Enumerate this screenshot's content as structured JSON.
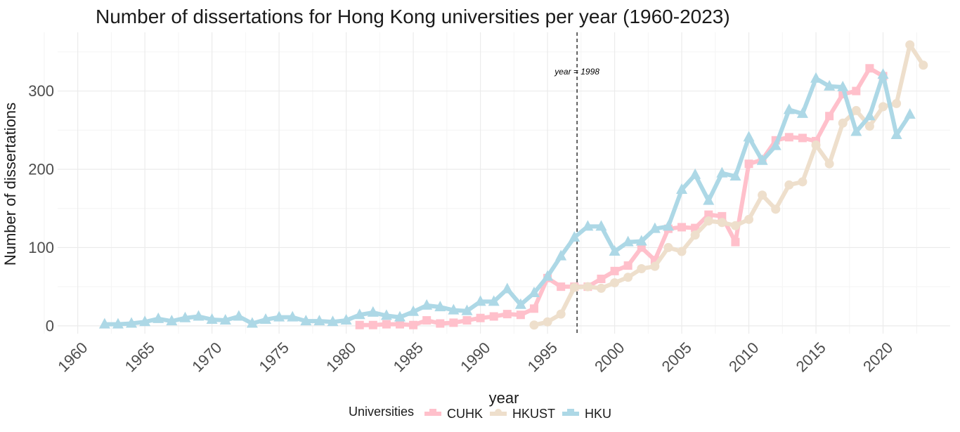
{
  "chart_data": {
    "type": "line",
    "title": "Number of dissertations for Hong Kong universities per year (1960-2023)",
    "xlabel": "year",
    "ylabel": "Number of dissertations",
    "xlim": [
      1958.5,
      2025
    ],
    "ylim": [
      -10,
      375
    ],
    "x_ticks": [
      1960,
      1965,
      1970,
      1975,
      1980,
      1985,
      1990,
      1995,
      2000,
      2005,
      2010,
      2015,
      2020
    ],
    "y_ticks": [
      0,
      100,
      200,
      300
    ],
    "grid": true,
    "legend": {
      "title": "Universities",
      "position": "bottom"
    },
    "annotation": {
      "x": 1998,
      "label": "year = 1998"
    },
    "series": [
      {
        "name": "CUHK",
        "color": "#FFC0CB",
        "marker": "square",
        "x": [
          1981,
          1982,
          1983,
          1984,
          1985,
          1986,
          1987,
          1988,
          1989,
          1990,
          1991,
          1992,
          1993,
          1994,
          1995,
          1996,
          1997,
          1998,
          1999,
          2000,
          2001,
          2002,
          2003,
          2004,
          2005,
          2006,
          2007,
          2008,
          2009,
          2010,
          2011,
          2012,
          2013,
          2014,
          2015,
          2016,
          2017,
          2018,
          2019,
          2020,
          2021
        ],
        "y": [
          1,
          1,
          2,
          2,
          1,
          7,
          3,
          4,
          7,
          10,
          12,
          15,
          14,
          22,
          61,
          50,
          50,
          50,
          60,
          70,
          77,
          100,
          84,
          124,
          126,
          125,
          142,
          140,
          107,
          207,
          212,
          237,
          241,
          240,
          236,
          268,
          296,
          300,
          329,
          319,
          null
        ]
      },
      {
        "name": "HKUST",
        "color": "#EEDFCC",
        "marker": "circle",
        "x": [
          1994,
          1995,
          1996,
          1997,
          1998,
          1999,
          2000,
          2001,
          2002,
          2003,
          2004,
          2005,
          2006,
          2007,
          2008,
          2009,
          2010,
          2011,
          2012,
          2013,
          2014,
          2015,
          2016,
          2017,
          2018,
          2019,
          2020,
          2021,
          2022,
          2023
        ],
        "y": [
          1,
          5,
          15,
          49,
          50,
          48,
          55,
          62,
          73,
          76,
          100,
          95,
          116,
          134,
          132,
          128,
          136,
          167,
          149,
          180,
          184,
          231,
          207,
          259,
          275,
          255,
          280,
          284,
          359,
          333
        ]
      },
      {
        "name": "HKU",
        "color": "#ADD8E6",
        "marker": "triangle",
        "x": [
          1962,
          1963,
          1964,
          1965,
          1966,
          1967,
          1968,
          1969,
          1970,
          1971,
          1972,
          1973,
          1974,
          1975,
          1976,
          1977,
          1978,
          1979,
          1980,
          1981,
          1982,
          1983,
          1984,
          1985,
          1986,
          1987,
          1988,
          1989,
          1990,
          1991,
          1992,
          1993,
          1994,
          1995,
          1996,
          1997,
          1998,
          1999,
          2000,
          2001,
          2002,
          2003,
          2004,
          2005,
          2006,
          2007,
          2008,
          2009,
          2010,
          2011,
          2012,
          2013,
          2014,
          2015,
          2016,
          2017,
          2018,
          2019,
          2020,
          2021,
          2022,
          2023
        ],
        "y": [
          2,
          2,
          3,
          5,
          9,
          6,
          10,
          12,
          8,
          7,
          12,
          3,
          8,
          11,
          11,
          6,
          6,
          5,
          7,
          14,
          17,
          13,
          11,
          18,
          26,
          24,
          20,
          19,
          31,
          31,
          47,
          27,
          42,
          63,
          89,
          113,
          127,
          127,
          95,
          107,
          108,
          124,
          127,
          174,
          193,
          160,
          195,
          191,
          241,
          211,
          230,
          276,
          271,
          316,
          306,
          305,
          248,
          268,
          321,
          244,
          270,
          null
        ]
      }
    ]
  }
}
